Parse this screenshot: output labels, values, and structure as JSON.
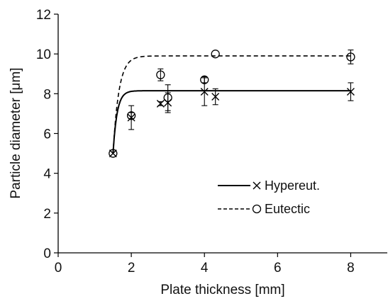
{
  "chart_data": {
    "type": "scatter",
    "xlabel": "Plate thickness [mm]",
    "ylabel": "Particle diameter [μm]",
    "xlim": [
      0,
      9
    ],
    "ylim": [
      0,
      12
    ],
    "xticks": [
      0,
      2,
      4,
      6,
      8
    ],
    "yticks": [
      0,
      2,
      4,
      6,
      8,
      10,
      12
    ],
    "grid": false,
    "legend_position": "lower-right",
    "series": [
      {
        "name": "Hypereut.",
        "marker": "x",
        "line_style": "solid",
        "color": "#000000",
        "points": [
          {
            "x": 1.5,
            "y": 5.0,
            "err": 0.05
          },
          {
            "x": 2.0,
            "y": 6.8,
            "err": 0.6
          },
          {
            "x": 2.8,
            "y": 7.5,
            "err": 0.1
          },
          {
            "x": 3.0,
            "y": 7.55,
            "err": 0.5
          },
          {
            "x": 4.0,
            "y": 8.1,
            "err": 0.7
          },
          {
            "x": 4.3,
            "y": 7.85,
            "err": 0.4
          },
          {
            "x": 8.0,
            "y": 8.1,
            "err": 0.45
          }
        ],
        "fit": {
          "ymax": 8.15,
          "k": 0.11,
          "x0": 1.5,
          "y0": 5.0
        }
      },
      {
        "name": "Eutectic",
        "marker": "circle",
        "line_style": "dashed",
        "color": "#000000",
        "points": [
          {
            "x": 1.5,
            "y": 5.0,
            "err": 0.05
          },
          {
            "x": 2.0,
            "y": 6.9,
            "err": 0.15
          },
          {
            "x": 2.8,
            "y": 8.95,
            "err": 0.3
          },
          {
            "x": 3.0,
            "y": 7.8,
            "err": 0.65
          },
          {
            "x": 4.0,
            "y": 8.7,
            "err": 0.15
          },
          {
            "x": 4.3,
            "y": 10.0,
            "err": 0.0
          },
          {
            "x": 8.0,
            "y": 9.85,
            "err": 0.35
          }
        ],
        "fit": {
          "ymax": 9.9,
          "k": 0.16,
          "x0": 1.5,
          "y0": 5.0
        }
      }
    ]
  }
}
